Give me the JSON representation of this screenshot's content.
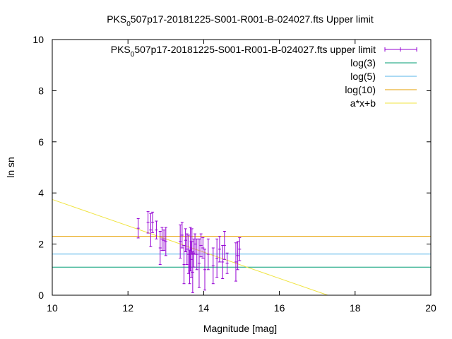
{
  "chart_data": {
    "type": "scatter",
    "title_prefix": "PKS",
    "title_sub": "0",
    "title_rest": "507p17-20181225-S001-R001-B-024027.fts Upper limit",
    "xlabel": "Magnitude [mag]",
    "ylabel": "ln sn",
    "xlim": [
      10,
      20
    ],
    "ylim": [
      0,
      10
    ],
    "xticks": [
      "10",
      "12",
      "14",
      "16",
      "18",
      "20"
    ],
    "yticks": [
      "0",
      "2",
      "4",
      "6",
      "8",
      "10"
    ],
    "grid": false,
    "legend_position": "top-right",
    "legend": [
      {
        "prefix": "PKS",
        "sub": "0",
        "rest": "507p17-20181225-S001-R001-B-024027.fts upper limit",
        "color": "#9400d3",
        "kind": "errorbar"
      },
      {
        "prefix": "log(3)",
        "sub": "",
        "rest": "",
        "color": "#009e73",
        "kind": "line"
      },
      {
        "prefix": "log(5)",
        "sub": "",
        "rest": "",
        "color": "#56b4e9",
        "kind": "line"
      },
      {
        "prefix": "log(10)",
        "sub": "",
        "rest": "",
        "color": "#e69f00",
        "kind": "line"
      },
      {
        "prefix": "a*x+b",
        "sub": "",
        "rest": "",
        "color": "#f0e442",
        "kind": "line"
      }
    ],
    "hlines": [
      {
        "name": "log(3)",
        "y": 1.0986,
        "color": "#009e73"
      },
      {
        "name": "log(5)",
        "y": 1.6094,
        "color": "#56b4e9"
      },
      {
        "name": "log(10)",
        "y": 2.3026,
        "color": "#e69f00"
      }
    ],
    "fit_line": {
      "name": "a*x+b",
      "a": -0.5145,
      "b": 8.89,
      "color": "#f0e442"
    },
    "series": [
      {
        "name": "PKS_0507p17-20181225-S001-R001-B-024027.fts upper limit",
        "color": "#9400d3",
        "points": [
          {
            "x": 12.27,
            "y": 2.62,
            "err": 0.38
          },
          {
            "x": 12.53,
            "y": 2.85,
            "err": 0.42
          },
          {
            "x": 12.6,
            "y": 2.55,
            "err": 0.65
          },
          {
            "x": 12.65,
            "y": 2.85,
            "err": 0.4
          },
          {
            "x": 12.75,
            "y": 2.55,
            "err": 0.35
          },
          {
            "x": 12.85,
            "y": 1.85,
            "err": 0.65
          },
          {
            "x": 12.9,
            "y": 2.2,
            "err": 0.45
          },
          {
            "x": 12.95,
            "y": 2.15,
            "err": 0.4
          },
          {
            "x": 13.0,
            "y": 2.1,
            "err": 0.55
          },
          {
            "x": 13.38,
            "y": 2.1,
            "err": 0.65
          },
          {
            "x": 13.43,
            "y": 2.35,
            "err": 0.5
          },
          {
            "x": 13.48,
            "y": 1.2,
            "err": 0.75
          },
          {
            "x": 13.52,
            "y": 2.15,
            "err": 0.45
          },
          {
            "x": 13.56,
            "y": 1.8,
            "err": 0.6
          },
          {
            "x": 13.6,
            "y": 1.6,
            "err": 0.75
          },
          {
            "x": 13.63,
            "y": 1.1,
            "err": 0.65
          },
          {
            "x": 13.65,
            "y": 1.8,
            "err": 0.85
          },
          {
            "x": 13.67,
            "y": 1.4,
            "err": 0.7
          },
          {
            "x": 13.69,
            "y": 2.1,
            "err": 0.5
          },
          {
            "x": 13.71,
            "y": 0.9,
            "err": 0.8
          },
          {
            "x": 13.74,
            "y": 1.65,
            "err": 0.55
          },
          {
            "x": 13.77,
            "y": 2.0,
            "err": 0.4
          },
          {
            "x": 13.82,
            "y": 1.6,
            "err": 0.6
          },
          {
            "x": 13.88,
            "y": 1.25,
            "err": 0.95
          },
          {
            "x": 13.93,
            "y": 1.95,
            "err": 0.45
          },
          {
            "x": 13.98,
            "y": 1.85,
            "err": 0.4
          },
          {
            "x": 14.03,
            "y": 1.0,
            "err": 0.8
          },
          {
            "x": 14.12,
            "y": 1.6,
            "err": 0.6
          },
          {
            "x": 14.25,
            "y": 1.15,
            "err": 0.7
          },
          {
            "x": 14.35,
            "y": 1.45,
            "err": 0.75
          },
          {
            "x": 14.42,
            "y": 1.8,
            "err": 0.5
          },
          {
            "x": 14.5,
            "y": 1.3,
            "err": 0.65
          },
          {
            "x": 14.55,
            "y": 1.95,
            "err": 0.55
          },
          {
            "x": 14.62,
            "y": 1.25,
            "err": 0.4
          },
          {
            "x": 14.85,
            "y": 1.3,
            "err": 0.75
          },
          {
            "x": 14.9,
            "y": 1.55,
            "err": 0.55
          },
          {
            "x": 14.95,
            "y": 1.8,
            "err": 0.45
          }
        ]
      }
    ]
  }
}
